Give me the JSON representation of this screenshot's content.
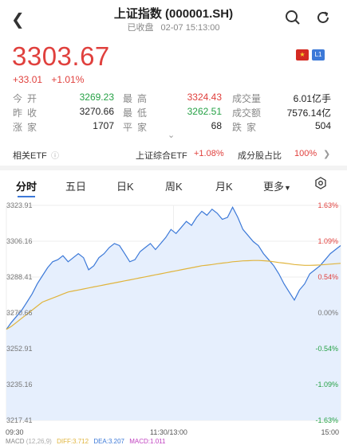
{
  "header": {
    "title": "上证指数 (000001.SH)",
    "status": "已收盘",
    "datetime": "02-07 15:13:00"
  },
  "quote": {
    "price": "3303.67",
    "change": "+33.01",
    "change_pct": "+1.01%",
    "badge": "L1",
    "rows": [
      {
        "l1": "今开",
        "v1": "3269.23",
        "l2": "最高",
        "v2": "3324.43",
        "l3": "成交量",
        "v3": "6.01亿手"
      },
      {
        "l1": "昨收",
        "v1": "3270.66",
        "l2": "最低",
        "v2": "3262.51",
        "l3": "成交额",
        "v3": "7576.14亿"
      },
      {
        "l1": "涨家",
        "v1": "1707",
        "l2": "平家",
        "v2": "68",
        "l3": "跌家",
        "v3": "504"
      }
    ]
  },
  "etf_bar": {
    "related_label": "相关ETF",
    "etf_name": "上证综合ETF",
    "etf_change": "+1.08%",
    "component_label": "成分股占比",
    "component_value": "100%"
  },
  "tabs": [
    "分时",
    "五日",
    "日K",
    "周K",
    "月K",
    "更多"
  ],
  "chart_data": {
    "type": "line",
    "y_labels_left": [
      "3323.91",
      "3306.16",
      "3288.41",
      "3270.66",
      "3252.91",
      "3235.16",
      "3217.41"
    ],
    "y_labels_right": [
      "1.63%",
      "1.09%",
      "0.54%",
      "0.00%",
      "-0.54%",
      "-1.09%",
      "-1.63%"
    ],
    "x_labels": [
      "09:30",
      "11:30/13:00",
      "15:00"
    ],
    "ylim": [
      3217.41,
      3323.91
    ],
    "prev_close": 3270.66,
    "series": [
      {
        "values": [
          3262.5,
          3266,
          3269,
          3272,
          3276,
          3280,
          3285,
          3289,
          3293,
          3296,
          3297,
          3299,
          3296,
          3298,
          3300,
          3298,
          3292,
          3294,
          3298,
          3300,
          3303,
          3305,
          3304,
          3300,
          3296,
          3297,
          3301,
          3303,
          3305,
          3302,
          3305,
          3308,
          3312,
          3310,
          3313,
          3316,
          3314,
          3318,
          3321,
          3319,
          3322,
          3320,
          3317,
          3318,
          3323,
          3318,
          3312,
          3309,
          3306,
          3304,
          3300,
          3297,
          3294,
          3290,
          3285,
          3281,
          3277,
          3282,
          3285,
          3290,
          3292,
          3294,
          3297,
          3300,
          3302,
          3304
        ]
      },
      {
        "values": [
          3262.5,
          3264,
          3266,
          3268,
          3270,
          3272,
          3274,
          3276,
          3277,
          3278,
          3279,
          3280,
          3281,
          3281.5,
          3282,
          3282.5,
          3283,
          3283.5,
          3284,
          3284.5,
          3285,
          3285.5,
          3286,
          3286.5,
          3287,
          3287.5,
          3288,
          3288.5,
          3289,
          3289.5,
          3290,
          3290.5,
          3291,
          3291.5,
          3292,
          3292.5,
          3293,
          3293.5,
          3294,
          3294.3,
          3294.6,
          3295,
          3295.3,
          3295.6,
          3296,
          3296.2,
          3296.4,
          3296.5,
          3296.6,
          3296.6,
          3296.5,
          3296.3,
          3296,
          3295.6,
          3295.3,
          3295,
          3294.6,
          3294.4,
          3294.2,
          3294.2,
          3294.3,
          3294.4,
          3294.6,
          3294.8,
          3295,
          3295.2
        ]
      }
    ]
  },
  "macd": {
    "label": "MACD",
    "params": "(12,26,9)",
    "diff": "DIFF:3.712",
    "dea": "DEA:3.207",
    "macd": "MACD:1.011"
  }
}
